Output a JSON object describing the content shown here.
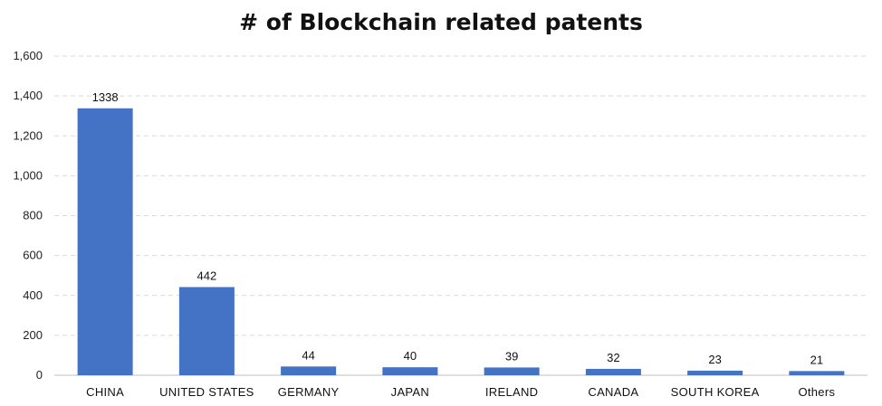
{
  "chart_data": {
    "type": "bar",
    "title": "# of Blockchain related patents",
    "xlabel": "",
    "ylabel": "",
    "categories": [
      "CHINA",
      "UNITED STATES",
      "GERMANY",
      "JAPAN",
      "IRELAND",
      "CANADA",
      "SOUTH KOREA",
      "Others"
    ],
    "values": [
      1338,
      442,
      44,
      40,
      39,
      32,
      23,
      21
    ],
    "data_labels": [
      "1338",
      "442",
      "44",
      "40",
      "39",
      "32",
      "23",
      "21"
    ],
    "ylim": [
      0,
      1600
    ],
    "yticks": [
      0,
      200,
      400,
      600,
      800,
      1000,
      1200,
      1400,
      1600
    ],
    "ytick_labels": [
      "0",
      "200",
      "400",
      "600",
      "800",
      "1,000",
      "1,200",
      "1,400",
      "1,600"
    ],
    "grid": true,
    "legend": "none",
    "bar_color": "#4472C4",
    "grid_color": "#D9D9D9"
  }
}
